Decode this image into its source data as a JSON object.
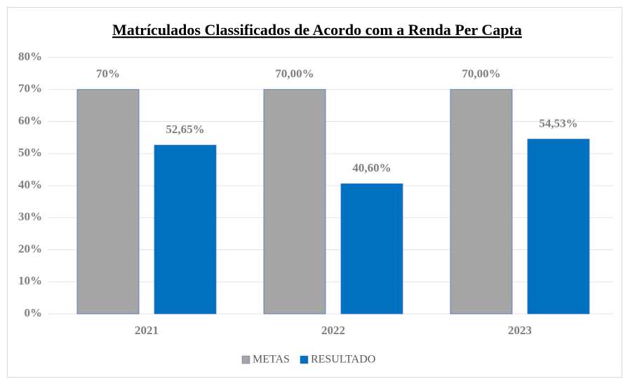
{
  "chart_data": {
    "type": "bar",
    "title": "Matrículados Classificados de Acordo com a Renda Per Capta",
    "categories": [
      "2021",
      "2022",
      "2023"
    ],
    "series": [
      {
        "name": "METAS",
        "color": "#a5a5a5",
        "values": [
          70,
          70,
          70
        ],
        "value_labels": [
          "70%",
          "70,00%",
          "70,00%"
        ]
      },
      {
        "name": "RESULTADO",
        "color": "#0070c0",
        "values": [
          52.65,
          40.6,
          54.53
        ],
        "value_labels": [
          "52,65%",
          "40,60%",
          "54,53%"
        ]
      }
    ],
    "ylim": [
      0,
      80
    ],
    "yticks": [
      {
        "value": 0,
        "label": "0%"
      },
      {
        "value": 10,
        "label": "10%"
      },
      {
        "value": 20,
        "label": "20%"
      },
      {
        "value": 30,
        "label": "30%"
      },
      {
        "value": 40,
        "label": "40%"
      },
      {
        "value": 50,
        "label": "50%"
      },
      {
        "value": 60,
        "label": "60%"
      },
      {
        "value": 70,
        "label": "70%"
      },
      {
        "value": 80,
        "label": "80%"
      }
    ],
    "grid": true,
    "legend": "bottom"
  }
}
